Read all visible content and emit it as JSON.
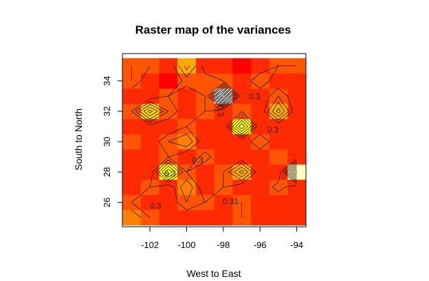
{
  "chart_data": {
    "type": "heatmap",
    "title": "Raster map of the variances",
    "xlabel": "West to East",
    "ylabel": "South to North",
    "xlim": [
      -103.5,
      -93.5
    ],
    "ylim": [
      24.4,
      35.8
    ],
    "x_ticks": [
      "-102",
      "-100",
      "-98",
      "-96",
      "-94"
    ],
    "y_ticks": [
      "26",
      "28",
      "30",
      "32",
      "34"
    ],
    "x_tick_values": [
      -102,
      -100,
      -98,
      -96,
      -94
    ],
    "y_tick_values": [
      26,
      28,
      30,
      32,
      34
    ],
    "x_centers": [
      -103.0,
      -102.0,
      -101.0,
      -100.0,
      -99.0,
      -98.0,
      -97.0,
      -96.0,
      -95.0,
      -94.0
    ],
    "y_centers": [
      25.0,
      26.0,
      27.0,
      28.0,
      29.0,
      30.0,
      31.0,
      32.0,
      33.0,
      34.0,
      35.0
    ],
    "color_scale": [
      "#FF0000",
      "#FF2A00",
      "#FF5500",
      "#FF8000",
      "#FFAA00",
      "#FFD400",
      "#FFFF00",
      "#FFFF60",
      "#FFFFC0"
    ],
    "values_note": "rows listed from north (top) to south (bottom)",
    "values": [
      [
        0.3,
        0.2,
        0.1,
        0.45,
        0.15,
        0.1,
        0.05,
        0.1,
        0.2,
        0.2
      ],
      [
        0.3,
        0.1,
        0.05,
        0.25,
        0.25,
        0.2,
        0.1,
        0.3,
        0.1,
        0.1
      ],
      [
        0.1,
        0.1,
        0.2,
        0.1,
        0.2,
        1.0,
        0.1,
        0.1,
        0.3,
        0.1
      ],
      [
        0.2,
        0.65,
        0.3,
        0.1,
        0.2,
        0.1,
        0.2,
        0.1,
        0.55,
        0.1
      ],
      [
        0.1,
        0.15,
        0.1,
        0.2,
        0.1,
        0.1,
        0.7,
        0.1,
        0.1,
        0.1
      ],
      [
        0.2,
        0.1,
        0.3,
        0.4,
        0.1,
        0.1,
        0.1,
        0.3,
        0.1,
        0.1
      ],
      [
        0.1,
        0.1,
        0.2,
        0.1,
        0.25,
        0.1,
        0.1,
        0.1,
        0.2,
        0.1
      ],
      [
        0.1,
        0.1,
        0.7,
        0.2,
        0.1,
        0.2,
        0.55,
        0.1,
        0.1,
        0.95
      ],
      [
        0.1,
        0.2,
        0.1,
        0.4,
        0.1,
        0.2,
        0.1,
        0.1,
        0.25,
        0.1
      ],
      [
        0.2,
        0.1,
        0.1,
        0.3,
        0.2,
        0.1,
        0.2,
        0.1,
        0.1,
        0.1
      ],
      [
        0.4,
        0.2,
        0.1,
        0.1,
        0.1,
        0.1,
        0.2,
        0.1,
        0.1,
        0.1
      ]
    ],
    "contour_labels": [
      {
        "text": "0.3",
        "x": -96.3,
        "y": 32.8
      },
      {
        "text": "0.3",
        "x": -98.3,
        "y": 32.0,
        "rotate": 80
      },
      {
        "text": "0.3",
        "x": -95.3,
        "y": 30.6
      },
      {
        "text": "0.3",
        "x": -99.4,
        "y": 28.6
      },
      {
        "text": "0.3",
        "x": -100.9,
        "y": 27.7
      },
      {
        "text": "0.31",
        "x": -97.6,
        "y": 25.9
      },
      {
        "text": "0.3",
        "x": -101.7,
        "y": 25.6
      }
    ],
    "grid": false,
    "legend": "none"
  }
}
